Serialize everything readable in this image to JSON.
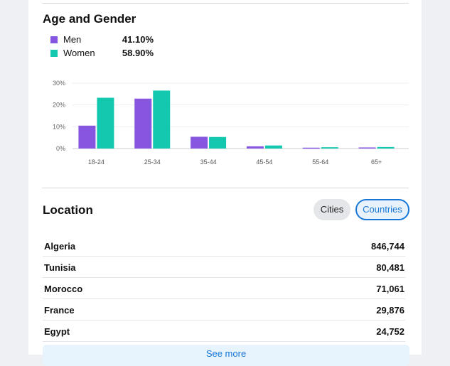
{
  "age_gender": {
    "title": "Age and Gender",
    "legend": [
      {
        "label": "Men",
        "percent": "41.10%",
        "color": "#8656e0"
      },
      {
        "label": "Women",
        "percent": "58.90%",
        "color": "#14c8b0"
      }
    ]
  },
  "chart_data": {
    "type": "bar",
    "categories": [
      "18-24",
      "25-34",
      "35-44",
      "45-54",
      "55-64",
      "65+"
    ],
    "series": [
      {
        "name": "Men",
        "color": "#8656e0",
        "values": [
          10.5,
          22.9,
          5.4,
          1.0,
          0.4,
          0.5
        ]
      },
      {
        "name": "Women",
        "color": "#14c8b0",
        "values": [
          23.3,
          26.6,
          5.3,
          1.4,
          0.6,
          0.7
        ]
      }
    ],
    "y_ticks": [
      "0%",
      "10%",
      "20%",
      "30%"
    ],
    "ylim": [
      0,
      30
    ],
    "grid": true
  },
  "location": {
    "title": "Location",
    "tabs": [
      {
        "label": "Cities",
        "active": false
      },
      {
        "label": "Countries",
        "active": true
      }
    ],
    "rows": [
      {
        "name": "Algeria",
        "value": "846,744"
      },
      {
        "name": "Tunisia",
        "value": "80,481"
      },
      {
        "name": "Morocco",
        "value": "71,061"
      },
      {
        "name": "France",
        "value": "29,876"
      },
      {
        "name": "Egypt",
        "value": "24,752"
      }
    ],
    "see_more_label": "See more"
  },
  "colors": {
    "accent": "#1877d6"
  }
}
